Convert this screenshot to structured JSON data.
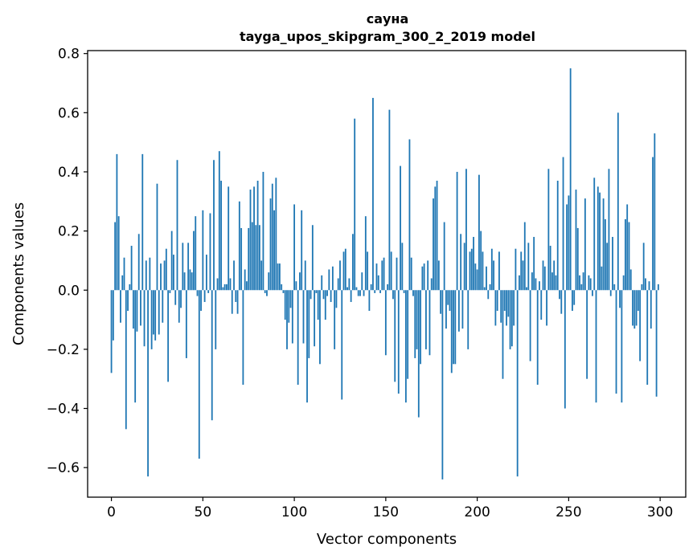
{
  "chart_data": {
    "type": "bar",
    "title": "сауна",
    "subtitle": "tayga_upos_skipgram_300_2_2019 model",
    "xlabel": "Vector components",
    "ylabel": "Components values",
    "xlim": [
      -13,
      314
    ],
    "ylim": [
      -0.7,
      0.81
    ],
    "xticks": [
      0,
      50,
      100,
      150,
      200,
      250,
      300
    ],
    "xtick_labels": [
      "0",
      "50",
      "100",
      "150",
      "200",
      "250",
      "300"
    ],
    "yticks": [
      -0.6,
      -0.4,
      -0.2,
      0.0,
      0.2,
      0.4,
      0.6,
      0.8
    ],
    "ytick_labels": [
      "−0.6",
      "−0.4",
      "−0.2",
      "0.0",
      "0.2",
      "0.4",
      "0.6",
      "0.8"
    ],
    "grid": false,
    "bar_color": "#1f77b4",
    "values": [
      -0.28,
      -0.17,
      0.23,
      0.46,
      0.25,
      -0.11,
      0.05,
      0.11,
      -0.47,
      -0.07,
      0.02,
      0.15,
      -0.13,
      -0.38,
      -0.14,
      0.19,
      -0.12,
      0.46,
      -0.19,
      0.1,
      -0.63,
      0.11,
      -0.2,
      -0.15,
      -0.17,
      0.36,
      -0.15,
      0.09,
      -0.11,
      0.1,
      0.14,
      -0.31,
      -0.01,
      0.2,
      0.12,
      -0.05,
      0.44,
      -0.11,
      -0.06,
      0.16,
      0.06,
      -0.23,
      0.16,
      0.07,
      0.06,
      0.2,
      0.25,
      -0.02,
      -0.57,
      -0.07,
      0.27,
      -0.04,
      0.12,
      -0.01,
      0.26,
      -0.44,
      0.44,
      -0.2,
      0.04,
      0.47,
      0.37,
      0.01,
      0.02,
      0.02,
      0.35,
      0.04,
      -0.08,
      0.1,
      -0.04,
      -0.08,
      0.3,
      0.21,
      -0.32,
      0.07,
      0.03,
      0.21,
      0.34,
      0.23,
      0.35,
      0.22,
      0.37,
      0.22,
      0.1,
      0.4,
      -0.01,
      -0.02,
      0.06,
      0.31,
      0.36,
      0.27,
      0.38,
      0.09,
      0.09,
      0.02,
      -0.01,
      -0.1,
      -0.2,
      -0.11,
      -0.06,
      -0.18,
      0.29,
      0.03,
      -0.32,
      0.06,
      0.27,
      -0.18,
      0.1,
      -0.38,
      -0.23,
      -0.03,
      0.22,
      -0.19,
      -0.01,
      -0.1,
      -0.25,
      0.05,
      -0.03,
      -0.1,
      -0.02,
      0.07,
      -0.04,
      0.08,
      -0.2,
      -0.06,
      0.04,
      0.1,
      -0.37,
      0.13,
      0.14,
      0.01,
      0.04,
      -0.04,
      0.19,
      0.58,
      0.01,
      -0.02,
      -0.02,
      0.06,
      -0.02,
      0.25,
      0.13,
      -0.07,
      0.02,
      0.65,
      -0.01,
      0.09,
      0.05,
      -0.01,
      0.1,
      0.11,
      -0.22,
      0.02,
      0.61,
      0.13,
      -0.03,
      -0.31,
      0.11,
      -0.35,
      0.42,
      0.16,
      -0.01,
      -0.38,
      -0.3,
      0.51,
      0.11,
      -0.02,
      -0.23,
      -0.2,
      -0.43,
      -0.25,
      0.08,
      0.09,
      -0.2,
      0.1,
      -0.22,
      0.04,
      0.31,
      0.35,
      0.37,
      0.1,
      -0.08,
      -0.64,
      0.23,
      -0.13,
      -0.05,
      -0.07,
      -0.28,
      -0.25,
      -0.25,
      0.4,
      -0.14,
      0.19,
      -0.13,
      0.16,
      0.41,
      -0.2,
      0.13,
      0.14,
      0.18,
      0.09,
      0.07,
      0.39,
      0.2,
      0.13,
      0.01,
      0.08,
      -0.03,
      0.02,
      0.14,
      0.1,
      -0.12,
      -0.07,
      0.13,
      -0.11,
      -0.3,
      -0.07,
      -0.12,
      -0.09,
      -0.2,
      -0.19,
      -0.12,
      0.14,
      -0.63,
      0.05,
      0.13,
      0.1,
      0.23,
      0.01,
      0.16,
      -0.24,
      0.06,
      0.18,
      0.04,
      -0.32,
      0.03,
      -0.1,
      0.1,
      0.08,
      -0.12,
      0.41,
      0.15,
      0.06,
      0.1,
      0.05,
      0.37,
      -0.03,
      -0.08,
      0.45,
      -0.4,
      0.29,
      0.32,
      0.75,
      -0.07,
      -0.05,
      0.34,
      0.21,
      0.05,
      0.02,
      0.06,
      0.31,
      -0.3,
      0.05,
      0.04,
      -0.02,
      0.38,
      -0.38,
      0.35,
      0.33,
      0.08,
      0.31,
      0.24,
      0.16,
      0.41,
      -0.02,
      0.18,
      0.02,
      -0.35,
      0.6,
      -0.06,
      -0.38,
      0.05,
      0.24,
      0.29,
      0.23,
      0.07,
      -0.12,
      -0.13,
      -0.12,
      -0.07,
      -0.24,
      0.02,
      0.16,
      0.04,
      -0.32,
      0.03,
      -0.13,
      0.45,
      0.53,
      -0.36,
      0.02
    ]
  }
}
